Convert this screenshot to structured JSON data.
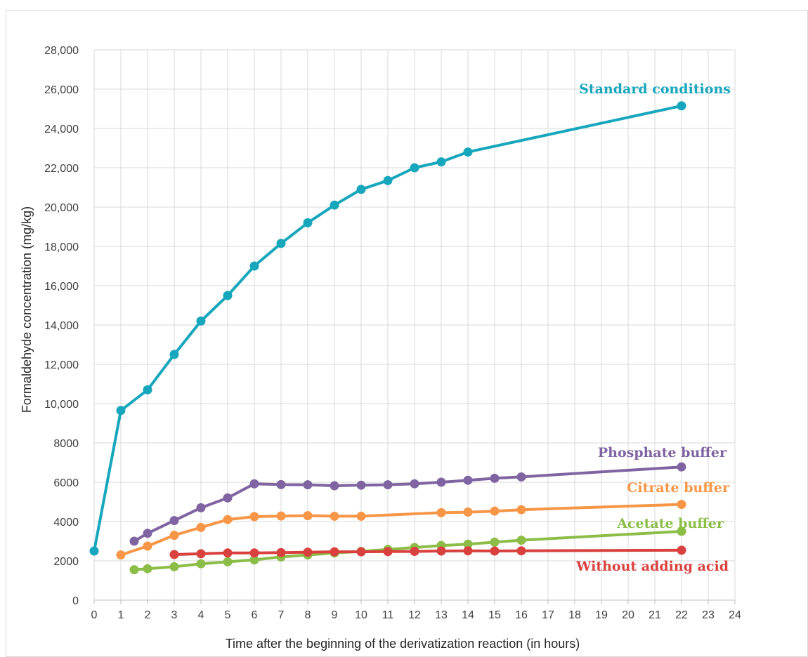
{
  "chart_data": {
    "type": "line",
    "xlabel": "Time after the beginning of the derivatization reaction (in hours)",
    "ylabel": "Formaldehyde concentration (mg/kg)",
    "xlim": [
      0,
      24
    ],
    "ylim": [
      0,
      28000
    ],
    "x_ticks": [
      0,
      1,
      2,
      3,
      4,
      5,
      6,
      7,
      8,
      9,
      10,
      11,
      12,
      13,
      14,
      15,
      16,
      17,
      18,
      19,
      20,
      21,
      22,
      23,
      24
    ],
    "y_ticks": [
      {
        "value": 0,
        "label": "0"
      },
      {
        "value": 2000,
        "label": "2000"
      },
      {
        "value": 4000,
        "label": "4000"
      },
      {
        "value": 6000,
        "label": "6000"
      },
      {
        "value": 8000,
        "label": "8000"
      },
      {
        "value": 10000,
        "label": "10,000"
      },
      {
        "value": 12000,
        "label": "12,000"
      },
      {
        "value": 14000,
        "label": "14,000"
      },
      {
        "value": 16000,
        "label": "16,000"
      },
      {
        "value": 18000,
        "label": "18,000"
      },
      {
        "value": 20000,
        "label": "20,000"
      },
      {
        "value": 22000,
        "label": "22,000"
      },
      {
        "value": 24000,
        "label": "24,000"
      },
      {
        "value": 26000,
        "label": "26,000"
      },
      {
        "value": 28000,
        "label": "28,000"
      }
    ],
    "grid": true,
    "series": [
      {
        "name": "Standard conditions",
        "color": "#17a7bd",
        "points": [
          [
            0,
            2500
          ],
          [
            1,
            9650
          ],
          [
            2,
            10700
          ],
          [
            3,
            12500
          ],
          [
            4,
            14200
          ],
          [
            5,
            15500
          ],
          [
            6,
            17000
          ],
          [
            7,
            18150
          ],
          [
            8,
            19200
          ],
          [
            9,
            20100
          ],
          [
            10,
            20900
          ],
          [
            11,
            21350
          ],
          [
            12,
            22000
          ],
          [
            13,
            22300
          ],
          [
            14,
            22800
          ],
          [
            22,
            25150
          ]
        ]
      },
      {
        "name": "Phosphate buffer",
        "color": "#8064a2",
        "points": [
          [
            1.5,
            3000
          ],
          [
            2,
            3400
          ],
          [
            3,
            4050
          ],
          [
            4,
            4700
          ],
          [
            5,
            5200
          ],
          [
            6,
            5920
          ],
          [
            7,
            5880
          ],
          [
            8,
            5870
          ],
          [
            9,
            5820
          ],
          [
            10,
            5850
          ],
          [
            11,
            5870
          ],
          [
            12,
            5920
          ],
          [
            13,
            6000
          ],
          [
            14,
            6100
          ],
          [
            15,
            6200
          ],
          [
            16,
            6270
          ],
          [
            22,
            6780
          ]
        ]
      },
      {
        "name": "Citrate buffer",
        "color": "#f79646",
        "points": [
          [
            1,
            2300
          ],
          [
            2,
            2750
          ],
          [
            3,
            3300
          ],
          [
            4,
            3700
          ],
          [
            5,
            4100
          ],
          [
            6,
            4250
          ],
          [
            7,
            4280
          ],
          [
            8,
            4300
          ],
          [
            9,
            4270
          ],
          [
            10,
            4270
          ],
          [
            13,
            4450
          ],
          [
            14,
            4480
          ],
          [
            15,
            4530
          ],
          [
            16,
            4600
          ],
          [
            22,
            4870
          ]
        ]
      },
      {
        "name": "Acetate buffer",
        "color": "#8bbd47",
        "points": [
          [
            1.5,
            1550
          ],
          [
            2,
            1600
          ],
          [
            3,
            1700
          ],
          [
            4,
            1850
          ],
          [
            5,
            1950
          ],
          [
            6,
            2050
          ],
          [
            7,
            2200
          ],
          [
            8,
            2300
          ],
          [
            9,
            2400
          ],
          [
            10,
            2480
          ],
          [
            11,
            2580
          ],
          [
            12,
            2680
          ],
          [
            13,
            2780
          ],
          [
            14,
            2850
          ],
          [
            15,
            2950
          ],
          [
            16,
            3050
          ],
          [
            22,
            3500
          ]
        ]
      },
      {
        "name": "Without adding acid",
        "color": "#d9413e",
        "points": [
          [
            3,
            2320
          ],
          [
            4,
            2360
          ],
          [
            5,
            2400
          ],
          [
            6,
            2400
          ],
          [
            7,
            2420
          ],
          [
            8,
            2440
          ],
          [
            9,
            2460
          ],
          [
            10,
            2460
          ],
          [
            11,
            2470
          ],
          [
            12,
            2480
          ],
          [
            13,
            2500
          ],
          [
            14,
            2510
          ],
          [
            15,
            2500
          ],
          [
            16,
            2510
          ],
          [
            22,
            2540
          ]
        ]
      }
    ]
  }
}
